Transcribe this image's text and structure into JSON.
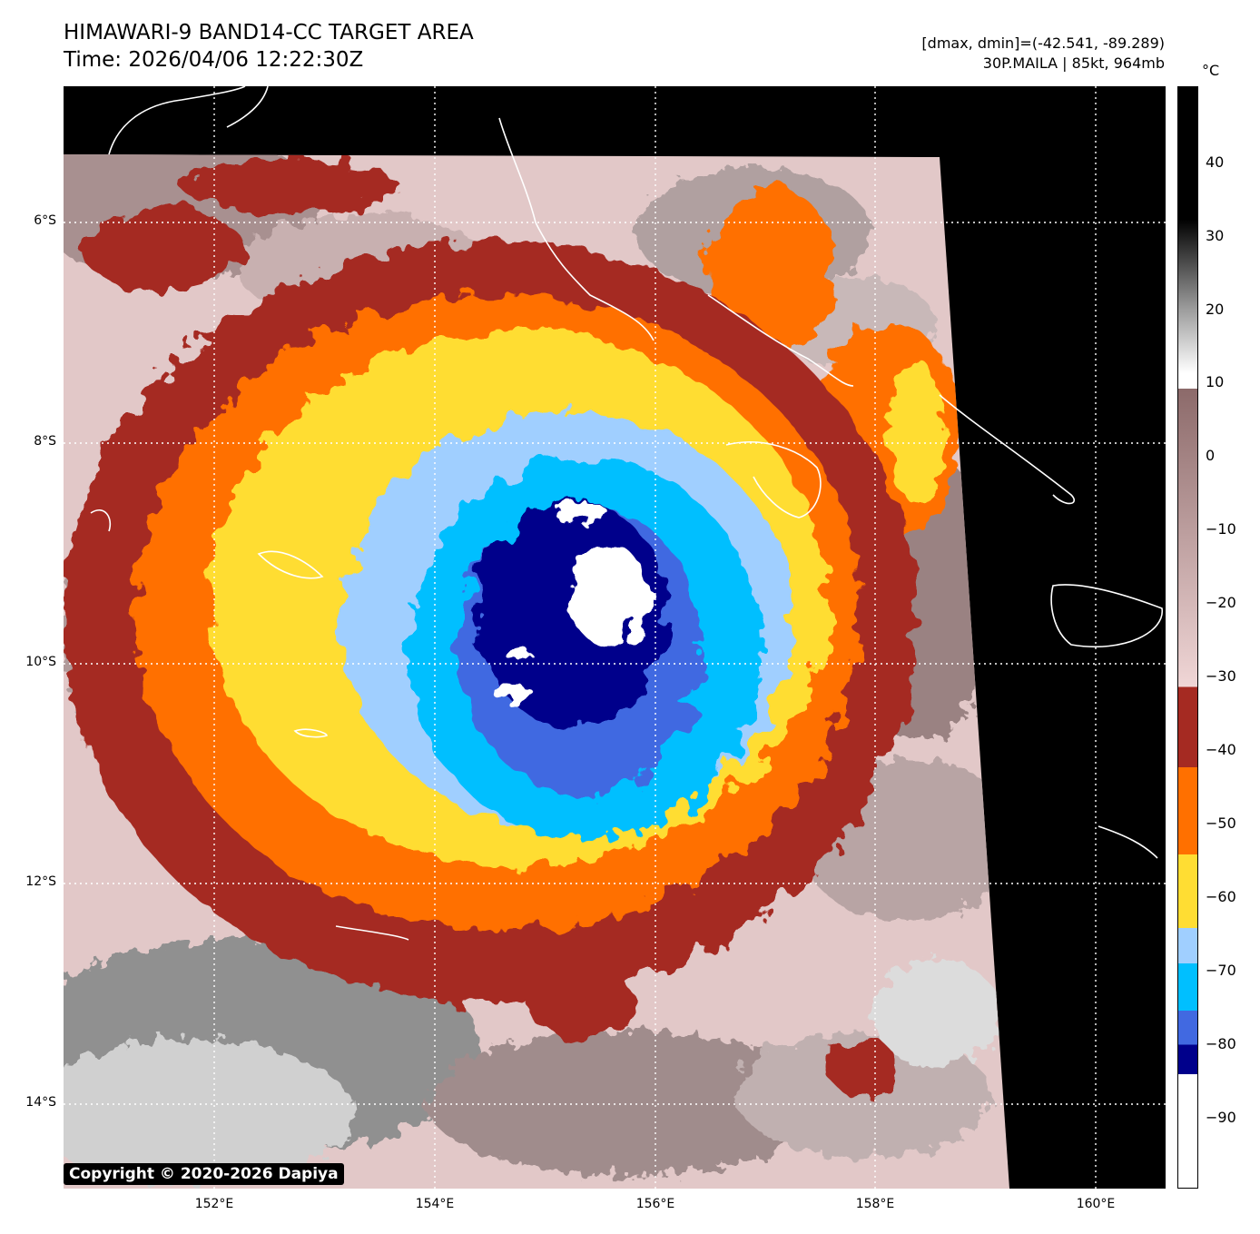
{
  "title": {
    "line1": "HIMAWARI-9 BAND14-CC TARGET AREA",
    "line2": "Time: 2026/04/06 12:22:30Z"
  },
  "info": {
    "range": "[dmax, dmin]=(-42.541, -89.289)",
    "storm": "30P.MAILA | 85kt, 964mb"
  },
  "map": {
    "lat_labels": [
      "6°S",
      "8°S",
      "10°S",
      "12°S",
      "14°S"
    ],
    "lon_labels": [
      "152°E",
      "154°E",
      "156°E",
      "158°E",
      "160°E"
    ]
  },
  "copyright": "Copyright © 2020-2026 Dapiya",
  "colorbar": {
    "unit": "°C",
    "ticks": [
      "40",
      "30",
      "20",
      "10",
      "0",
      "−10",
      "−20",
      "−30",
      "−40",
      "−50",
      "−60",
      "−70",
      "−80",
      "−90"
    ],
    "colors": {
      "white": "#ffffff",
      "navy": "#00008b",
      "royal_blue": "#4169e1",
      "deep_sky_blue": "#00bfff",
      "light_blue": "#a0cfff",
      "yellow": "#ffdd33",
      "orange": "#ff7000",
      "brown": "#a52a22",
      "pink": "#f0d6d6",
      "mauve": "#8c6a6a",
      "black": "#000000"
    }
  }
}
